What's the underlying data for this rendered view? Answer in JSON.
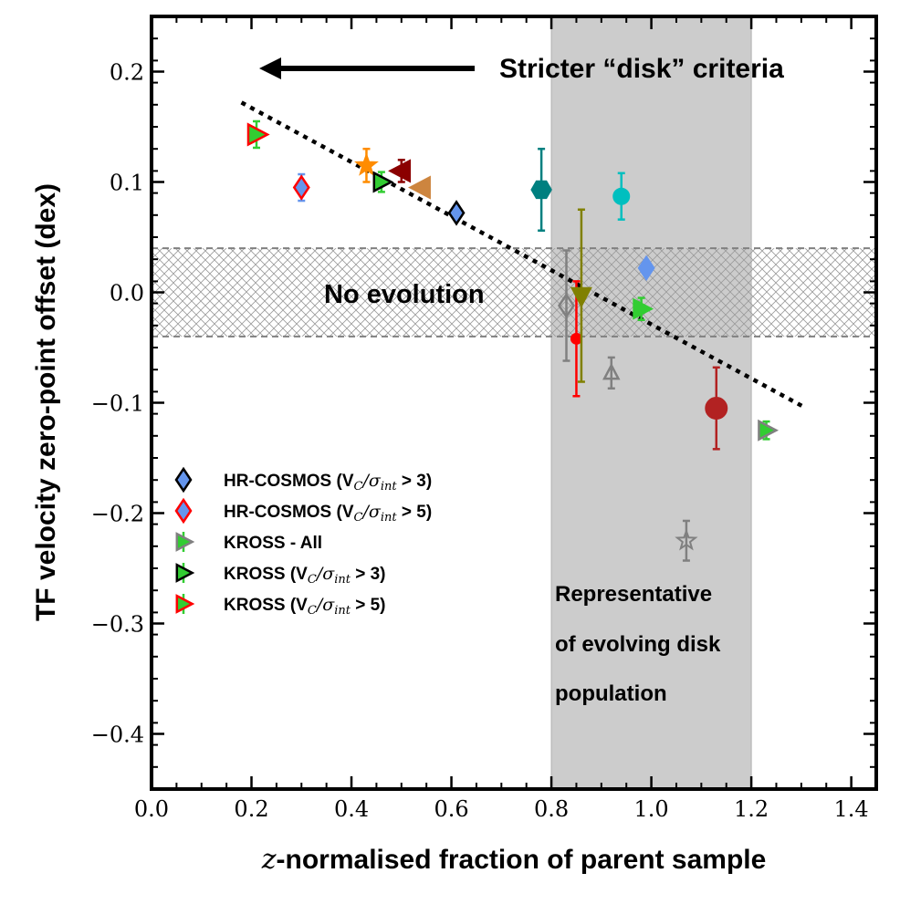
{
  "chart_data": {
    "type": "scatter",
    "xlabel": "z-normalised fraction of parent sample",
    "ylabel": "TF velocity zero-point offset (dex)",
    "xlim": [
      0.0,
      1.45
    ],
    "ylim": [
      -0.45,
      0.25
    ],
    "xticks": [
      0.0,
      0.2,
      0.4,
      0.6,
      0.8,
      1.0,
      1.2,
      1.4
    ],
    "xtick_labels": [
      "0.0",
      "0.2",
      "0.4",
      "0.6",
      "0.8",
      "1.0",
      "1.2",
      "1.4"
    ],
    "yticks": [
      0.2,
      0.1,
      0.0,
      -0.1,
      -0.2,
      -0.3,
      -0.4
    ],
    "ytick_labels": [
      "0.2",
      "0.1",
      "0.0",
      "−0.1",
      "−0.2",
      "−0.3",
      "−0.4"
    ],
    "shaded_region": {
      "x": [
        0.8,
        1.2
      ],
      "color": "#cccccc"
    },
    "no_evolution_band": {
      "y": [
        -0.04,
        0.04
      ],
      "pattern": "crosshatch"
    },
    "trend_line": {
      "x": [
        0.18,
        1.31
      ],
      "y": [
        0.172,
        -0.105
      ],
      "style": "dotted"
    },
    "annotations": {
      "stricter": "Stricter “disk” criteria",
      "no_evolution": "No evolution",
      "representative": [
        "Representative",
        "of evolving disk",
        "population"
      ]
    },
    "legend": [
      {
        "name": "HR-COSMOS (V",
        "sub": "C",
        "tail": "/σ",
        "tailsub": "int",
        "cond": " > 3)",
        "marker": "diamond",
        "fill": "#6495ed",
        "edge": "#000000"
      },
      {
        "name": "HR-COSMOS (V",
        "sub": "C",
        "tail": "/σ",
        "tailsub": "int",
        "cond": " > 5)",
        "marker": "diamond",
        "fill": "#6495ed",
        "edge": "#ff0000"
      },
      {
        "name": "KROSS - All",
        "sub": "",
        "tail": "",
        "tailsub": "",
        "cond": "",
        "marker": "triangle-right",
        "fill": "#32cd32",
        "edge": "#808080"
      },
      {
        "name": "KROSS (V",
        "sub": "C",
        "tail": "/σ",
        "tailsub": "int",
        "cond": " > 3)",
        "marker": "triangle-right",
        "fill": "#32cd32",
        "edge": "#000000"
      },
      {
        "name": "KROSS (V",
        "sub": "C",
        "tail": "/σ",
        "tailsub": "int",
        "cond": " > 5)",
        "marker": "triangle-right",
        "fill": "#32cd32",
        "edge": "#ff0000"
      }
    ],
    "points": [
      {
        "x": 0.21,
        "y": 0.143,
        "err": 0.012,
        "marker": "triangle-right",
        "fill": "#32cd32",
        "edge": "#ff0000",
        "ecolor": "#32cd32",
        "size": 20
      },
      {
        "x": 0.3,
        "y": 0.095,
        "err": 0.012,
        "marker": "diamond",
        "fill": "#6495ed",
        "edge": "#ff0000",
        "ecolor": "#6495ed",
        "size": 16
      },
      {
        "x": 0.43,
        "y": 0.115,
        "err": 0.015,
        "marker": "star",
        "fill": "#ff8c00",
        "edge": "#ff8c00",
        "ecolor": "#ff8c00",
        "size": 14
      },
      {
        "x": 0.46,
        "y": 0.1,
        "err": 0.009,
        "marker": "triangle-right",
        "fill": "#32cd32",
        "edge": "#000000",
        "ecolor": "#32cd32",
        "size": 18
      },
      {
        "x": 0.5,
        "y": 0.11,
        "err": 0.01,
        "marker": "triangle-left",
        "fill": "#8b0000",
        "edge": "#8b0000",
        "ecolor": "#8b0000",
        "size": 20
      },
      {
        "x": 0.54,
        "y": 0.095,
        "err": 0,
        "marker": "triangle-left",
        "fill": "#cd853f",
        "edge": "#cd853f",
        "ecolor": "#cd853f",
        "size": 20
      },
      {
        "x": 0.61,
        "y": 0.072,
        "err": 0,
        "marker": "diamond",
        "fill": "#6495ed",
        "edge": "#000000",
        "ecolor": "#6495ed",
        "size": 16
      },
      {
        "x": 0.78,
        "y": 0.093,
        "err": 0.037,
        "marker": "hexagon",
        "fill": "#008080",
        "edge": "#008080",
        "ecolor": "#008080",
        "size": 14
      },
      {
        "x": 0.83,
        "y": -0.012,
        "err": 0.05,
        "marker": "diamond-open",
        "fill": "none",
        "edge": "#808080",
        "ecolor": "#808080",
        "size": 16
      },
      {
        "x": 0.85,
        "y": -0.042,
        "err": 0.052,
        "marker": "circle",
        "fill": "#ff0000",
        "edge": "#ff0000",
        "ecolor": "#ff0000",
        "size": 8
      },
      {
        "x": 0.86,
        "y": -0.003,
        "err": 0.078,
        "marker": "triangle-down",
        "fill": "#808000",
        "edge": "#808000",
        "ecolor": "#808000",
        "size": 18
      },
      {
        "x": 0.92,
        "y": -0.073,
        "err": 0.014,
        "marker": "triangle-up-open",
        "fill": "none",
        "edge": "#808080",
        "ecolor": "#808080",
        "size": 14
      },
      {
        "x": 0.94,
        "y": 0.087,
        "err": 0.021,
        "marker": "circle",
        "fill": "#00bfbf",
        "edge": "#00bfbf",
        "ecolor": "#00bfbf",
        "size": 12
      },
      {
        "x": 0.98,
        "y": -0.015,
        "err": 0.01,
        "marker": "triangle-right",
        "fill": "#32cd32",
        "edge": "#32cd32",
        "ecolor": "#32cd32",
        "size": 18
      },
      {
        "x": 0.99,
        "y": 0.022,
        "err": 0,
        "marker": "diamond",
        "fill": "#6495ed",
        "edge": "#6495ed",
        "ecolor": "#6495ed",
        "size": 16
      },
      {
        "x": 1.07,
        "y": -0.225,
        "err": 0.018,
        "marker": "star-open",
        "fill": "none",
        "edge": "#808080",
        "ecolor": "#808080",
        "size": 13
      },
      {
        "x": 1.13,
        "y": -0.105,
        "err": 0.037,
        "marker": "circle",
        "fill": "#b22222",
        "edge": "#b22222",
        "ecolor": "#b22222",
        "size": 16
      },
      {
        "x": 1.23,
        "y": -0.125,
        "err": 0.008,
        "marker": "triangle-right",
        "fill": "#32cd32",
        "edge": "#808080",
        "ecolor": "#32cd32",
        "size": 18
      }
    ]
  }
}
